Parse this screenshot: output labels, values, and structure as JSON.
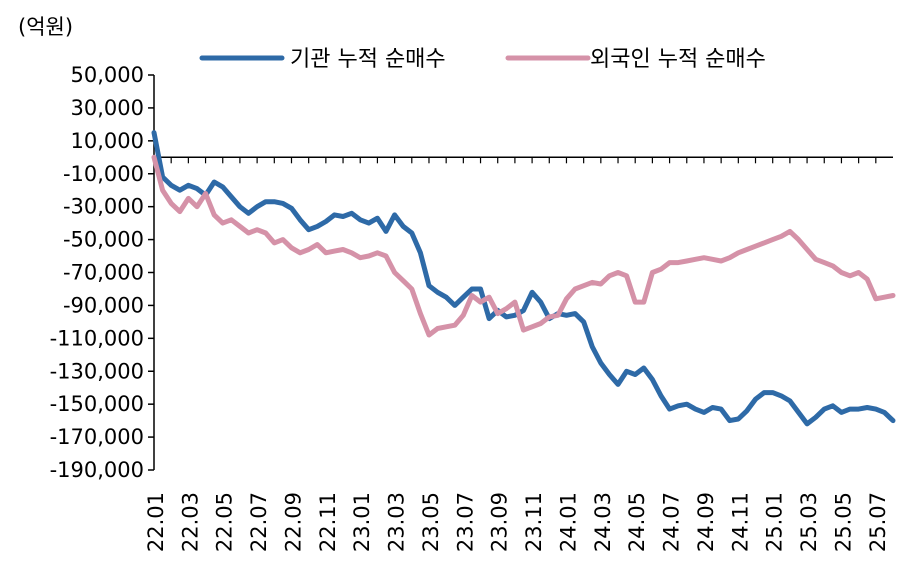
{
  "chart_data": {
    "type": "line",
    "unit_label": "(억원)",
    "ylim": [
      -190000,
      50000
    ],
    "yticks": [
      50000,
      30000,
      10000,
      -10000,
      -30000,
      -50000,
      -70000,
      -90000,
      -110000,
      -130000,
      -150000,
      -170000,
      -190000
    ],
    "ytick_labels": [
      "50,000",
      "30,000",
      "10,000",
      "-10,000",
      "-30,000",
      "-50,000",
      "-70,000",
      "-90,000",
      "-110,000",
      "-130,000",
      "-150,000",
      "-170,000",
      "-190,000"
    ],
    "xtick_labels": [
      "22.01",
      "22.03",
      "22.05",
      "22.07",
      "22.09",
      "22.11",
      "23.01",
      "23.03",
      "23.05",
      "23.07",
      "23.09",
      "23.11",
      "24.01",
      "24.03",
      "24.05",
      "24.07",
      "24.09",
      "24.11",
      "25.01",
      "25.03",
      "25.05",
      "25.07"
    ],
    "grid": false,
    "legend_position": "top",
    "series": [
      {
        "name": "기관 누적 순매수",
        "color": "#2e6aa7",
        "x": [
          0,
          0.25,
          0.5,
          0.75,
          1.0,
          1.25,
          1.5,
          1.75,
          2.0,
          2.25,
          2.5,
          2.75,
          3.0,
          3.25,
          3.5,
          3.75,
          4.0,
          4.25,
          4.5,
          4.75,
          5.0,
          5.25,
          5.5,
          5.75,
          6.0,
          6.25,
          6.5,
          6.75,
          7.0,
          7.25,
          7.5,
          7.75,
          8.0,
          8.25,
          8.5,
          8.75,
          9.0,
          9.25,
          9.5,
          9.75,
          10.0,
          10.25,
          10.5,
          10.75,
          11.0,
          11.25,
          11.5,
          11.75,
          12.0,
          12.25,
          12.5,
          12.75,
          13.0,
          13.25,
          13.5,
          13.75,
          14.0,
          14.25,
          14.5,
          14.75,
          15.0,
          15.25,
          15.5,
          15.75,
          16.0,
          16.25,
          16.5,
          16.75,
          17.0,
          17.25,
          17.5,
          17.75,
          18.0,
          18.25,
          18.5,
          18.75,
          19.0,
          19.25,
          19.5,
          19.75,
          20.0,
          20.25,
          20.5,
          20.75,
          21.0,
          21.25,
          21.5
        ],
        "values": [
          15000,
          -12000,
          -17000,
          -20000,
          -17000,
          -19000,
          -23000,
          -15000,
          -18000,
          -24000,
          -30000,
          -34000,
          -30000,
          -27000,
          -27000,
          -28000,
          -31000,
          -38000,
          -44000,
          -42000,
          -39000,
          -35000,
          -36000,
          -34000,
          -38000,
          -40000,
          -37000,
          -45000,
          -35000,
          -42000,
          -46000,
          -58000,
          -78000,
          -82000,
          -85000,
          -90000,
          -85000,
          -80000,
          -80000,
          -98000,
          -93000,
          -97000,
          -96000,
          -93000,
          -82000,
          -88000,
          -98000,
          -95000,
          -96000,
          -95000,
          -100000,
          -115000,
          -125000,
          -132000,
          -138000,
          -130000,
          -132000,
          -128000,
          -135000,
          -145000,
          -153000,
          -151000,
          -150000,
          -153000,
          -155000,
          -152000,
          -153000,
          -160000,
          -159000,
          -154000,
          -147000,
          -143000,
          -143000,
          -145000,
          -148000,
          -155000,
          -162000,
          -158000,
          -153000,
          -151000,
          -155000,
          -153000,
          -153000,
          -152000,
          -153000,
          -155000,
          -160000
        ]
      },
      {
        "name": "외국인 누적 순매수",
        "color": "#d592a8",
        "x": [
          0,
          0.25,
          0.5,
          0.75,
          1.0,
          1.25,
          1.5,
          1.75,
          2.0,
          2.25,
          2.5,
          2.75,
          3.0,
          3.25,
          3.5,
          3.75,
          4.0,
          4.25,
          4.5,
          4.75,
          5.0,
          5.25,
          5.5,
          5.75,
          6.0,
          6.25,
          6.5,
          6.75,
          7.0,
          7.25,
          7.5,
          7.75,
          8.0,
          8.25,
          8.5,
          8.75,
          9.0,
          9.25,
          9.5,
          9.75,
          10.0,
          10.25,
          10.5,
          10.75,
          11.0,
          11.25,
          11.5,
          11.75,
          12.0,
          12.25,
          12.5,
          12.75,
          13.0,
          13.25,
          13.5,
          13.75,
          14.0,
          14.25,
          14.5,
          14.75,
          15.0,
          15.25,
          15.5,
          15.75,
          16.0,
          16.25,
          16.5,
          16.75,
          17.0,
          17.25,
          17.5,
          17.75,
          18.0,
          18.25,
          18.5,
          18.75,
          19.0,
          19.25,
          19.5,
          19.75,
          20.0,
          20.25,
          20.5,
          20.75,
          21.0,
          21.25,
          21.5
        ],
        "values": [
          0,
          -20000,
          -28000,
          -33000,
          -25000,
          -30000,
          -22000,
          -35000,
          -40000,
          -38000,
          -42000,
          -46000,
          -44000,
          -46000,
          -52000,
          -50000,
          -55000,
          -58000,
          -56000,
          -53000,
          -58000,
          -57000,
          -56000,
          -58000,
          -61000,
          -60000,
          -58000,
          -60000,
          -70000,
          -75000,
          -80000,
          -95000,
          -108000,
          -104000,
          -103000,
          -102000,
          -96000,
          -84000,
          -88000,
          -85000,
          -95000,
          -92000,
          -88000,
          -105000,
          -103000,
          -101000,
          -97000,
          -96000,
          -86000,
          -80000,
          -78000,
          -76000,
          -77000,
          -72000,
          -70000,
          -72000,
          -88000,
          -88000,
          -70000,
          -68000,
          -64000,
          -64000,
          -63000,
          -62000,
          -61000,
          -62000,
          -63000,
          -61000,
          -58000,
          -56000,
          -54000,
          -52000,
          -50000,
          -48000,
          -45000,
          -50000,
          -56000,
          -62000,
          -64000,
          -66000,
          -70000,
          -72000,
          -70000,
          -74000,
          -86000,
          -85000,
          -84000
        ]
      }
    ]
  }
}
